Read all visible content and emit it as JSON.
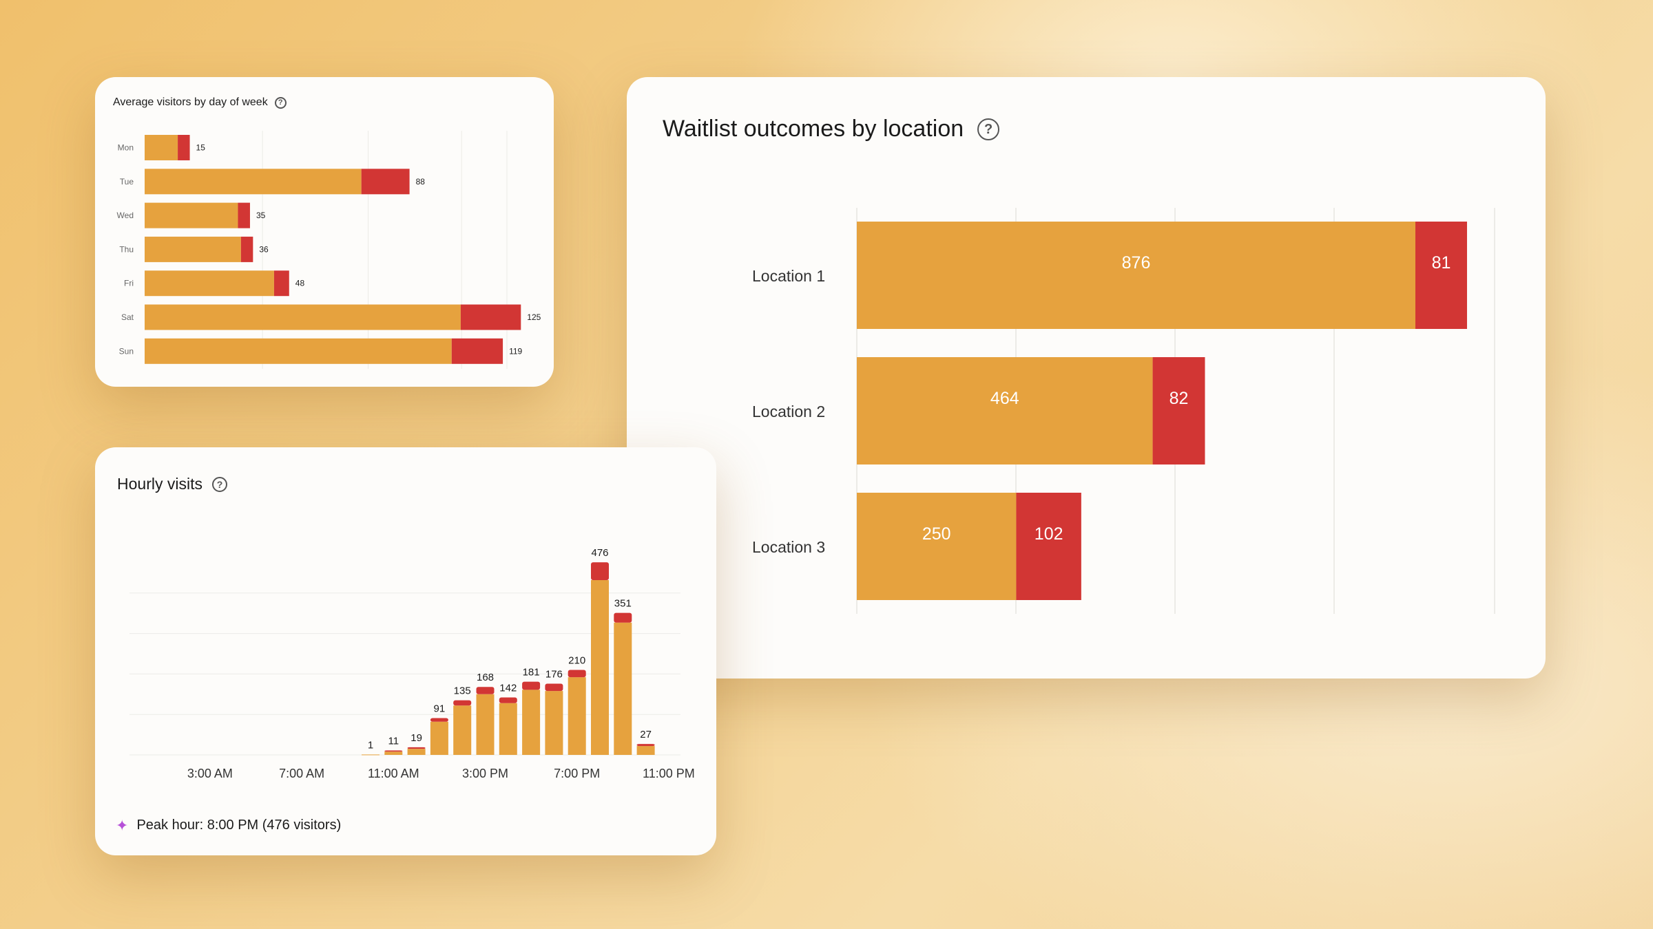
{
  "colors": {
    "primary": "#e6a23e",
    "secondary": "#d23634",
    "grid": "#ecebe7",
    "text": "#1b1b1b",
    "muted": "#666666",
    "sparkle": "#b650d8"
  },
  "cards": {
    "day_of_week": {
      "title": "Average visitors by day of week",
      "help_icon": "help-circle-icon"
    },
    "waitlist": {
      "title": "Waitlist outcomes by location",
      "help_icon": "help-circle-icon"
    },
    "hourly": {
      "title": "Hourly visits",
      "help_icon": "help-circle-icon",
      "peak_icon": "sparkle-icon",
      "peak_text": "Peak hour: 8:00 PM (476 visitors)"
    }
  },
  "chart_data": [
    {
      "id": "day_of_week",
      "type": "bar",
      "orientation": "horizontal",
      "stacked": true,
      "title": "Average visitors by day of week",
      "categories": [
        "Mon",
        "Tue",
        "Wed",
        "Thu",
        "Fri",
        "Sat",
        "Sun"
      ],
      "series": [
        {
          "values": [
            11,
            72,
            31,
            32,
            43,
            105,
            102
          ]
        },
        {
          "values": [
            4,
            16,
            4,
            4,
            5,
            20,
            17
          ]
        }
      ],
      "totals": [
        15,
        88,
        35,
        36,
        48,
        125,
        119
      ],
      "xlim": [
        0,
        135
      ],
      "grid": true
    },
    {
      "id": "waitlist",
      "type": "bar",
      "orientation": "horizontal",
      "stacked": true,
      "title": "Waitlist outcomes by location",
      "categories": [
        "Location 1",
        "Location 2",
        "Location 3"
      ],
      "series": [
        {
          "values": [
            876,
            464,
            250
          ]
        },
        {
          "values": [
            81,
            82,
            102
          ]
        }
      ],
      "xlim": [
        0,
        1000
      ],
      "grid": true
    },
    {
      "id": "hourly",
      "type": "bar",
      "stacked": true,
      "title": "Hourly visits",
      "x_tick_labels": [
        "3:00 AM",
        "7:00 AM",
        "11:00 AM",
        "3:00 PM",
        "7:00 PM",
        "11:00 PM"
      ],
      "hours": [
        10,
        11,
        12,
        13,
        14,
        15,
        16,
        17,
        18,
        19,
        20,
        21,
        22
      ],
      "totals": [
        1,
        11,
        19,
        91,
        135,
        168,
        142,
        181,
        176,
        210,
        476,
        351,
        27
      ],
      "series": [
        {
          "values": [
            1,
            8,
            15,
            82,
            122,
            150,
            128,
            161,
            158,
            192,
            432,
            327,
            22
          ]
        },
        {
          "values": [
            0,
            3,
            4,
            9,
            13,
            18,
            14,
            20,
            18,
            18,
            44,
            24,
            5
          ]
        }
      ],
      "xlim": [
        0,
        24
      ],
      "ylim": [
        0,
        500
      ],
      "grid": true
    }
  ]
}
